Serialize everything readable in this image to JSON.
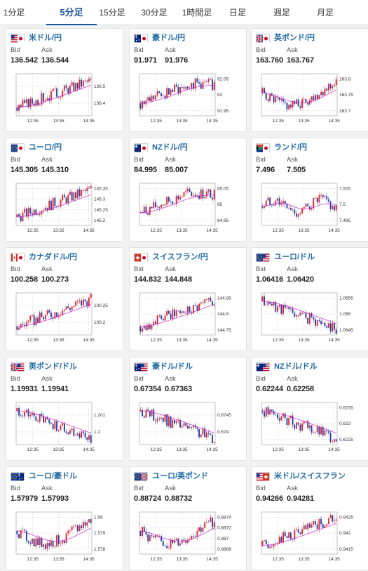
{
  "tabs": [
    {
      "label": "1分足"
    },
    {
      "label": "5分足"
    },
    {
      "label": "15分足"
    },
    {
      "label": "30分足"
    },
    {
      "label": "1時間足"
    },
    {
      "label": "日足"
    },
    {
      "label": "週足"
    },
    {
      "label": "月足"
    }
  ],
  "active_tab": 1,
  "labels": {
    "bid": "Bid",
    "ask": "Ask"
  },
  "colors": {
    "up": "#e8222d",
    "down": "#1f3fb0",
    "ma": "#cc22cc",
    "accent": "#1a57a0"
  },
  "pairs": [
    {
      "name": "米ドル/円",
      "flags": [
        "us",
        "jp"
      ],
      "bid": "136.542",
      "ask": "136.544",
      "ticks": [
        "136.5",
        "136.4"
      ],
      "times": [
        "12:35",
        "13:35",
        "14:35"
      ],
      "trend": "up"
    },
    {
      "name": "豪ドル/円",
      "flags": [
        "au",
        "jp"
      ],
      "bid": "91.971",
      "ask": "91.976",
      "ticks": [
        "92.05",
        "92",
        "91.95"
      ],
      "times": [
        "12:35",
        "13:35",
        "14:35"
      ],
      "trend": "upflat"
    },
    {
      "name": "英ポンド/円",
      "flags": [
        "gb",
        "jp"
      ],
      "bid": "163.760",
      "ask": "163.767",
      "ticks": [
        "163.8",
        "163.75",
        "163.7"
      ],
      "times": [
        "12:35",
        "13:35",
        "14:35"
      ],
      "trend": "dipup"
    },
    {
      "name": "ユーロ/円",
      "flags": [
        "eu",
        "jp"
      ],
      "bid": "145.305",
      "ask": "145.310",
      "ticks": [
        "145.35",
        "145.3",
        "145.25",
        "145.2"
      ],
      "times": [
        "12:35",
        "13:35",
        "14:35"
      ],
      "trend": "up"
    },
    {
      "name": "NZドル/円",
      "flags": [
        "nz",
        "jp"
      ],
      "bid": "84.995",
      "ask": "85.007",
      "ticks": [
        "85.05",
        "85",
        "84.95"
      ],
      "times": [
        "12:35",
        "13:35",
        "14:35"
      ],
      "trend": "upflat"
    },
    {
      "name": "ランド/円",
      "flags": [
        "za",
        "jp"
      ],
      "bid": "7.496",
      "ask": "7.505",
      "ticks": [
        "7.505",
        "7.5",
        "7.495"
      ],
      "times": [
        "12:35",
        "13:35",
        "14:35"
      ],
      "trend": "flat"
    },
    {
      "name": "カナダドル/円",
      "flags": [
        "ca",
        "jp"
      ],
      "bid": "100.258",
      "ask": "100.273",
      "ticks": [
        "100.25",
        "100.2"
      ],
      "times": [
        "12:35",
        "13:35",
        "14:35"
      ],
      "trend": "up"
    },
    {
      "name": "スイスフラン/円",
      "flags": [
        "ch",
        "jp"
      ],
      "bid": "144.832",
      "ask": "144.848",
      "ticks": [
        "144.85",
        "144.8",
        "144.75"
      ],
      "times": [
        "12:35",
        "13:35",
        "14:35"
      ],
      "trend": "up"
    },
    {
      "name": "ユーロ/ドル",
      "flags": [
        "eu",
        "us"
      ],
      "bid": "1.06416",
      "ask": "1.06420",
      "ticks": [
        "1.0655",
        "1.065",
        "1.0645"
      ],
      "times": [
        "12:35",
        "13:35",
        "14:35"
      ],
      "trend": "down"
    },
    {
      "name": "英ポンド/ドル",
      "flags": [
        "gb",
        "us"
      ],
      "bid": "1.19931",
      "ask": "1.19941",
      "ticks": [
        "1.201",
        "1.2"
      ],
      "times": [
        "12:35",
        "13:35",
        "14:35"
      ],
      "trend": "down"
    },
    {
      "name": "豪ドル/ドル",
      "flags": [
        "au",
        "us"
      ],
      "bid": "0.67354",
      "ask": "0.67363",
      "ticks": [
        "0.6745",
        "0.674"
      ],
      "times": [
        "12:35",
        "13:35",
        "14:35"
      ],
      "trend": "down"
    },
    {
      "name": "NZドル/ドル",
      "flags": [
        "nz",
        "us"
      ],
      "bid": "0.62244",
      "ask": "0.62258",
      "ticks": [
        "0.6235",
        "0.623",
        "0.6225"
      ],
      "times": [
        "12:35",
        "13:35",
        "14:35"
      ],
      "trend": "down"
    },
    {
      "name": "ユーロ/豪ドル",
      "flags": [
        "eu",
        "au"
      ],
      "bid": "1.57979",
      "ask": "1.57993",
      "ticks": [
        "1.58",
        "1.579",
        "1.578"
      ],
      "times": [
        "12:35",
        "13:35",
        "14:35"
      ],
      "trend": "dipup"
    },
    {
      "name": "ユーロ/英ポンド",
      "flags": [
        "eu",
        "gb"
      ],
      "bid": "0.88724",
      "ask": "0.88732",
      "ticks": [
        "0.8874",
        "0.8872",
        "0.887",
        "0.8868"
      ],
      "times": [
        "12:35",
        "13:35",
        "14:35"
      ],
      "trend": "dipup"
    },
    {
      "name": "米ドル/スイスフラン",
      "flags": [
        "us",
        "ch"
      ],
      "bid": "0.94266",
      "ask": "0.94281",
      "ticks": [
        "0.9425",
        "0.942",
        "0.9415"
      ],
      "times": [
        "12:35",
        "13:35",
        "14:35"
      ],
      "trend": "up"
    }
  ]
}
